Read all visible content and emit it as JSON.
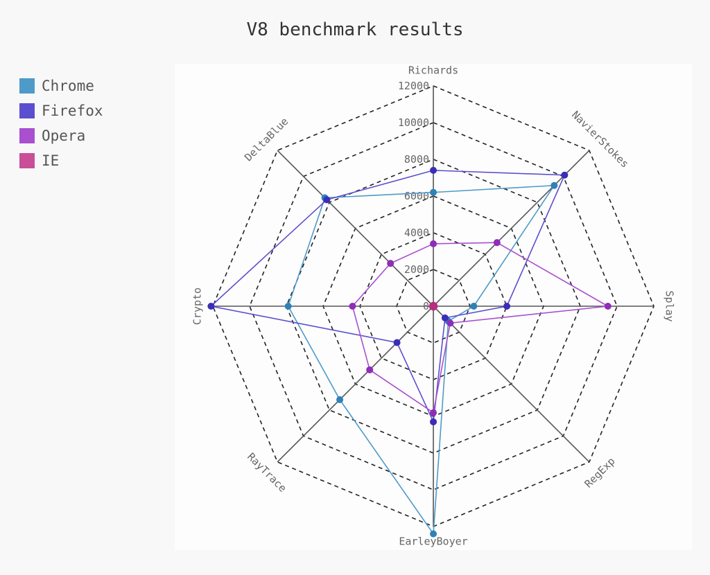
{
  "chart_data": {
    "type": "radar",
    "title": "V8 benchmark results",
    "categories": [
      "Richards",
      "NavierStokes",
      "Splay",
      "RegExp",
      "EarleyBoyer",
      "RayTrace",
      "Crypto",
      "DeltaBlue"
    ],
    "rlim": [
      0,
      12000
    ],
    "ticks": [
      0,
      2000,
      4000,
      6000,
      8000,
      10000,
      12000
    ],
    "tick_labels": [
      "0",
      "2000",
      "4000",
      "6000",
      "8000",
      "10000",
      "12000"
    ],
    "grid": true,
    "legend_position": "top-left",
    "series": [
      {
        "name": "Chrome",
        "color": "#4e9ac8",
        "point_color": "#2e82b8",
        "values": [
          6200,
          9300,
          2200,
          1150,
          12400,
          7200,
          7900,
          8350
        ]
      },
      {
        "name": "Firefox",
        "color": "#5a4fcf",
        "point_color": "#3a2eb8",
        "values": [
          7400,
          10100,
          4000,
          900,
          6300,
          2800,
          12100,
          8200
        ]
      },
      {
        "name": "Opera",
        "color": "#a94fcf",
        "point_color": "#8e2eb8",
        "values": [
          3400,
          4900,
          9500,
          1300,
          5800,
          4900,
          4400,
          3300
        ]
      },
      {
        "name": "IE",
        "color": "#c94f98",
        "point_color": "#b82e80",
        "values": [
          50,
          50,
          50,
          50,
          50,
          50,
          50,
          50
        ]
      }
    ]
  }
}
